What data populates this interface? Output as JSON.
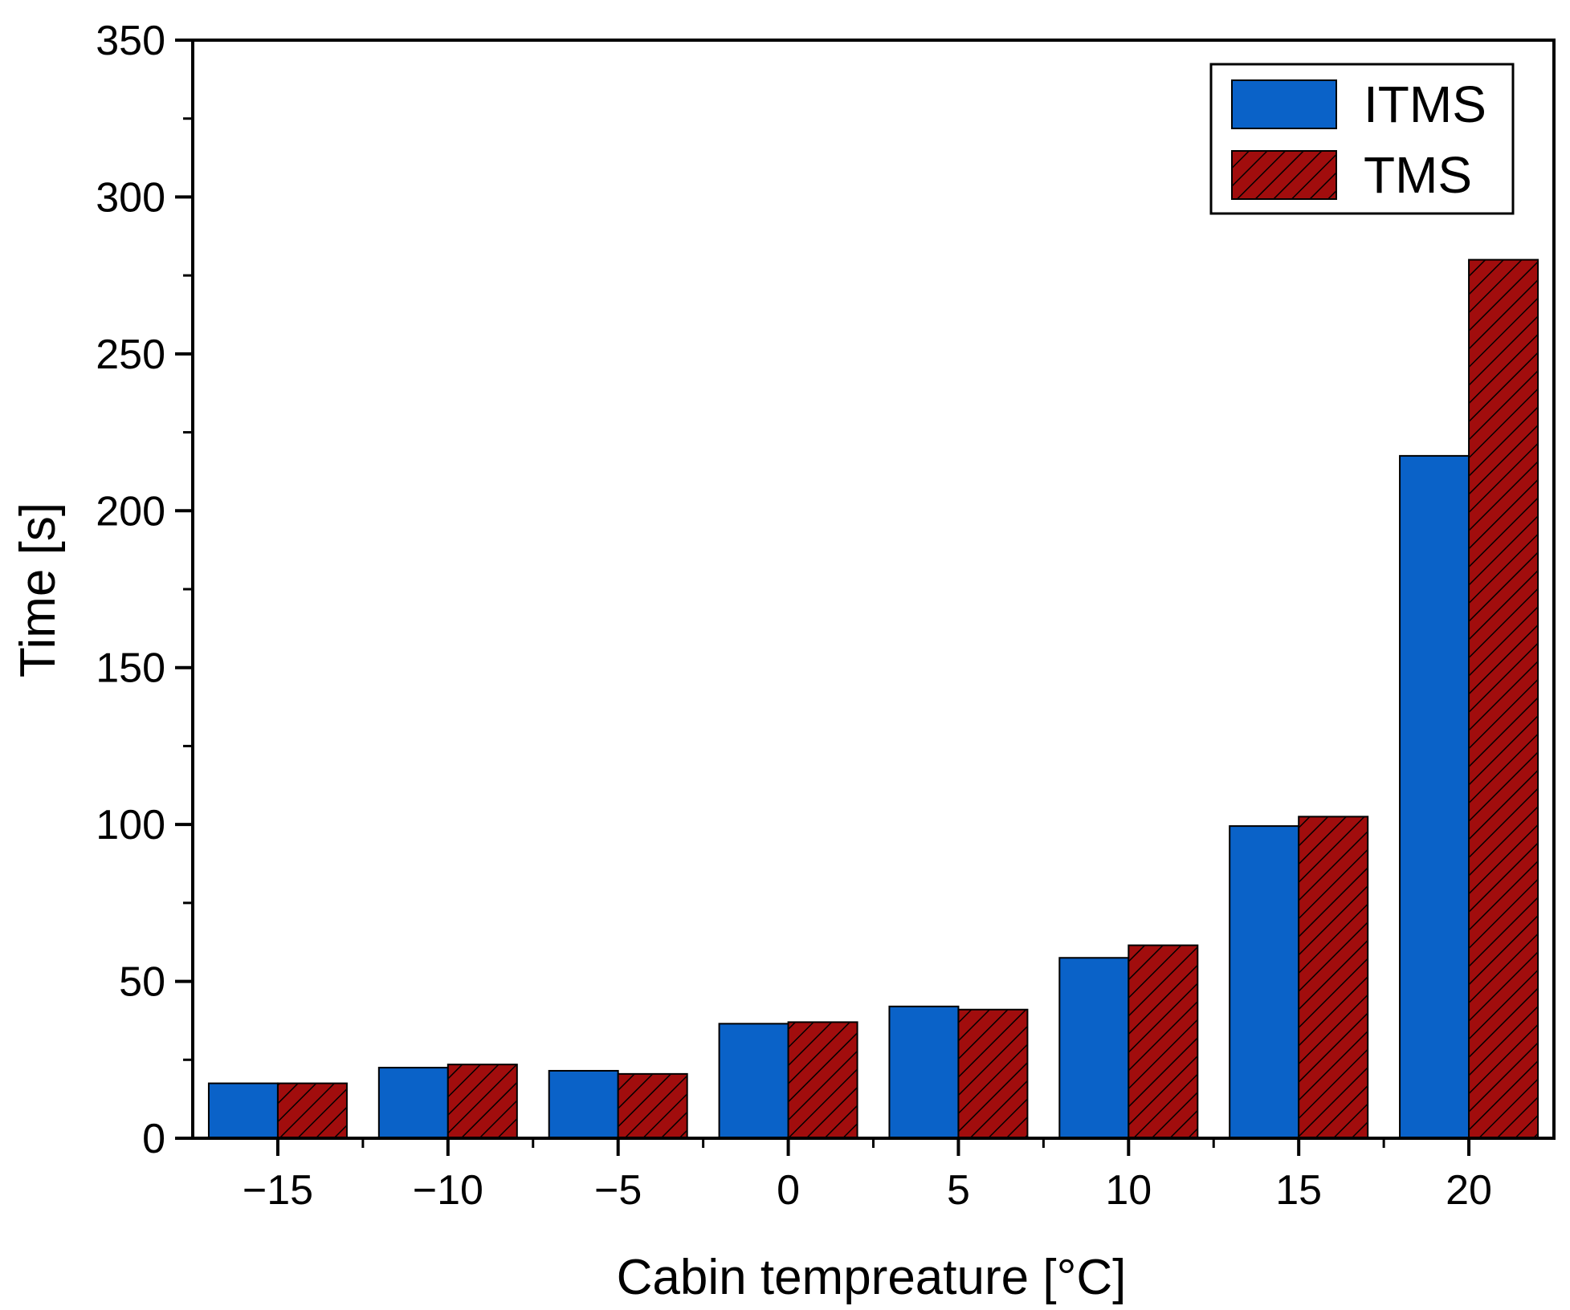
{
  "chart_data": {
    "type": "bar",
    "title": "",
    "xlabel": "Cabin tempreature [°C]",
    "ylabel": "Time [s]",
    "categories": [
      "−15",
      "−10",
      "−5",
      "0",
      "5",
      "10",
      "15",
      "20"
    ],
    "series": [
      {
        "name": "ITMS",
        "values": [
          17.5,
          22.5,
          21.5,
          36.5,
          42,
          57.5,
          99.5,
          217.5
        ],
        "color": "#0A62C8",
        "pattern": "solid"
      },
      {
        "name": "TMS",
        "values": [
          17.5,
          23.5,
          20.5,
          37,
          41,
          61.5,
          102.5,
          280
        ],
        "color": "#A10D0D",
        "pattern": "hatched"
      }
    ],
    "ylim": [
      0,
      350
    ],
    "yticks": [
      0,
      50,
      100,
      150,
      200,
      250,
      300,
      350
    ],
    "legend_position": "top-right"
  }
}
